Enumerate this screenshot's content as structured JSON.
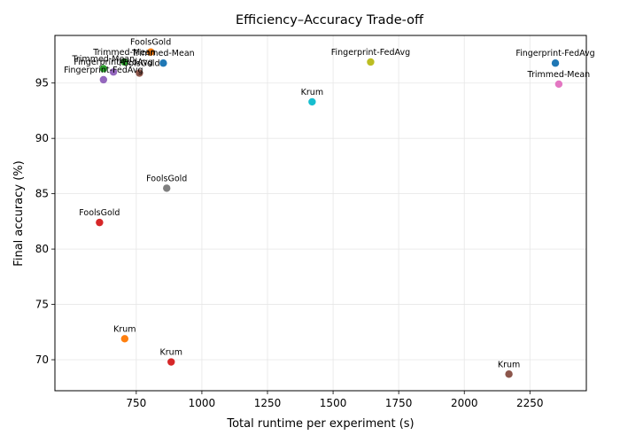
{
  "chart_data": {
    "type": "scatter",
    "title": "Efficiency–Accuracy Trade-off",
    "xlabel": "Total runtime per experiment (s)",
    "ylabel": "Final accuracy (%)",
    "xlim": [
      440,
      2465
    ],
    "ylim": [
      67.2,
      99.3
    ],
    "xticks": [
      750,
      1000,
      1250,
      1500,
      1750,
      2000,
      2250
    ],
    "yticks": [
      70,
      75,
      80,
      85,
      90,
      95
    ],
    "grid": true,
    "points": [
      {
        "x": 610,
        "y": 82.4,
        "label": "FoolsGold",
        "color": "#d62728"
      },
      {
        "x": 625,
        "y": 95.3,
        "label": "Fingerprint-FedAvg",
        "color": "#9467bd"
      },
      {
        "x": 625,
        "y": 96.3,
        "label": "Trimmed-Mean",
        "color": "#2ca02c"
      },
      {
        "x": 663,
        "y": 96.0,
        "label": "Fingerprint-FedAvg",
        "color": "#9467bd"
      },
      {
        "x": 705,
        "y": 96.9,
        "label": "Trimmed-Mean",
        "color": "#2ca02c"
      },
      {
        "x": 706,
        "y": 71.9,
        "label": "Krum",
        "color": "#ff7f0e"
      },
      {
        "x": 762,
        "y": 95.9,
        "label": "FoolsGold",
        "color": "#8c564b"
      },
      {
        "x": 805,
        "y": 97.8,
        "label": "FoolsGold",
        "color": "#ff7f0e"
      },
      {
        "x": 853,
        "y": 96.8,
        "label": "Trimmed-Mean",
        "color": "#1f77b4"
      },
      {
        "x": 866,
        "y": 85.5,
        "label": "FoolsGold",
        "color": "#7f7f7f"
      },
      {
        "x": 883,
        "y": 69.8,
        "label": "Krum",
        "color": "#d62728"
      },
      {
        "x": 1420,
        "y": 93.3,
        "label": "Krum",
        "color": "#17becf"
      },
      {
        "x": 1643,
        "y": 96.9,
        "label": "Fingerprint-FedAvg",
        "color": "#bcbd22"
      },
      {
        "x": 2170,
        "y": 68.7,
        "label": "Krum",
        "color": "#8c564b"
      },
      {
        "x": 2347,
        "y": 96.8,
        "label": "Fingerprint-FedAvg",
        "color": "#1f77b4"
      },
      {
        "x": 2360,
        "y": 94.9,
        "label": "Trimmed-Mean",
        "color": "#e377c2"
      }
    ]
  }
}
